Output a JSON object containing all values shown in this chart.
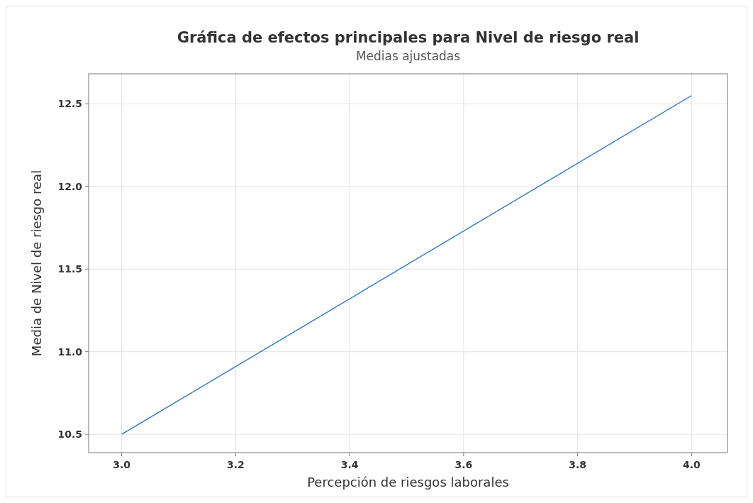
{
  "chart_data": {
    "type": "line",
    "title": "Gráfica de efectos principales para Nivel de riesgo real",
    "subtitle": "Medias ajustadas",
    "xlabel": "Percepción de riesgos laborales",
    "ylabel": "Media de Nivel de riesgo real",
    "x": [
      3.0,
      4.0
    ],
    "series": [
      {
        "color": "#1f6fc5",
        "values": [
          10.5,
          12.55
        ]
      }
    ],
    "xlim": [
      2.942,
      4.063
    ],
    "ylim": [
      10.389,
      12.682
    ],
    "xticks": [
      {
        "value": 3.0,
        "label": "3.0"
      },
      {
        "value": 3.2,
        "label": "3.2"
      },
      {
        "value": 3.4,
        "label": "3.4"
      },
      {
        "value": 3.6,
        "label": "3.6"
      },
      {
        "value": 3.8,
        "label": "3.8"
      },
      {
        "value": 4.0,
        "label": "4.0"
      }
    ],
    "yticks": [
      {
        "value": 10.5,
        "label": "10.5"
      },
      {
        "value": 11.0,
        "label": "11.0"
      },
      {
        "value": 11.5,
        "label": "11.5"
      },
      {
        "value": 12.0,
        "label": "12.0"
      },
      {
        "value": 12.5,
        "label": "12.5"
      }
    ],
    "grid": true,
    "marker": "none",
    "line_style": "solid"
  }
}
